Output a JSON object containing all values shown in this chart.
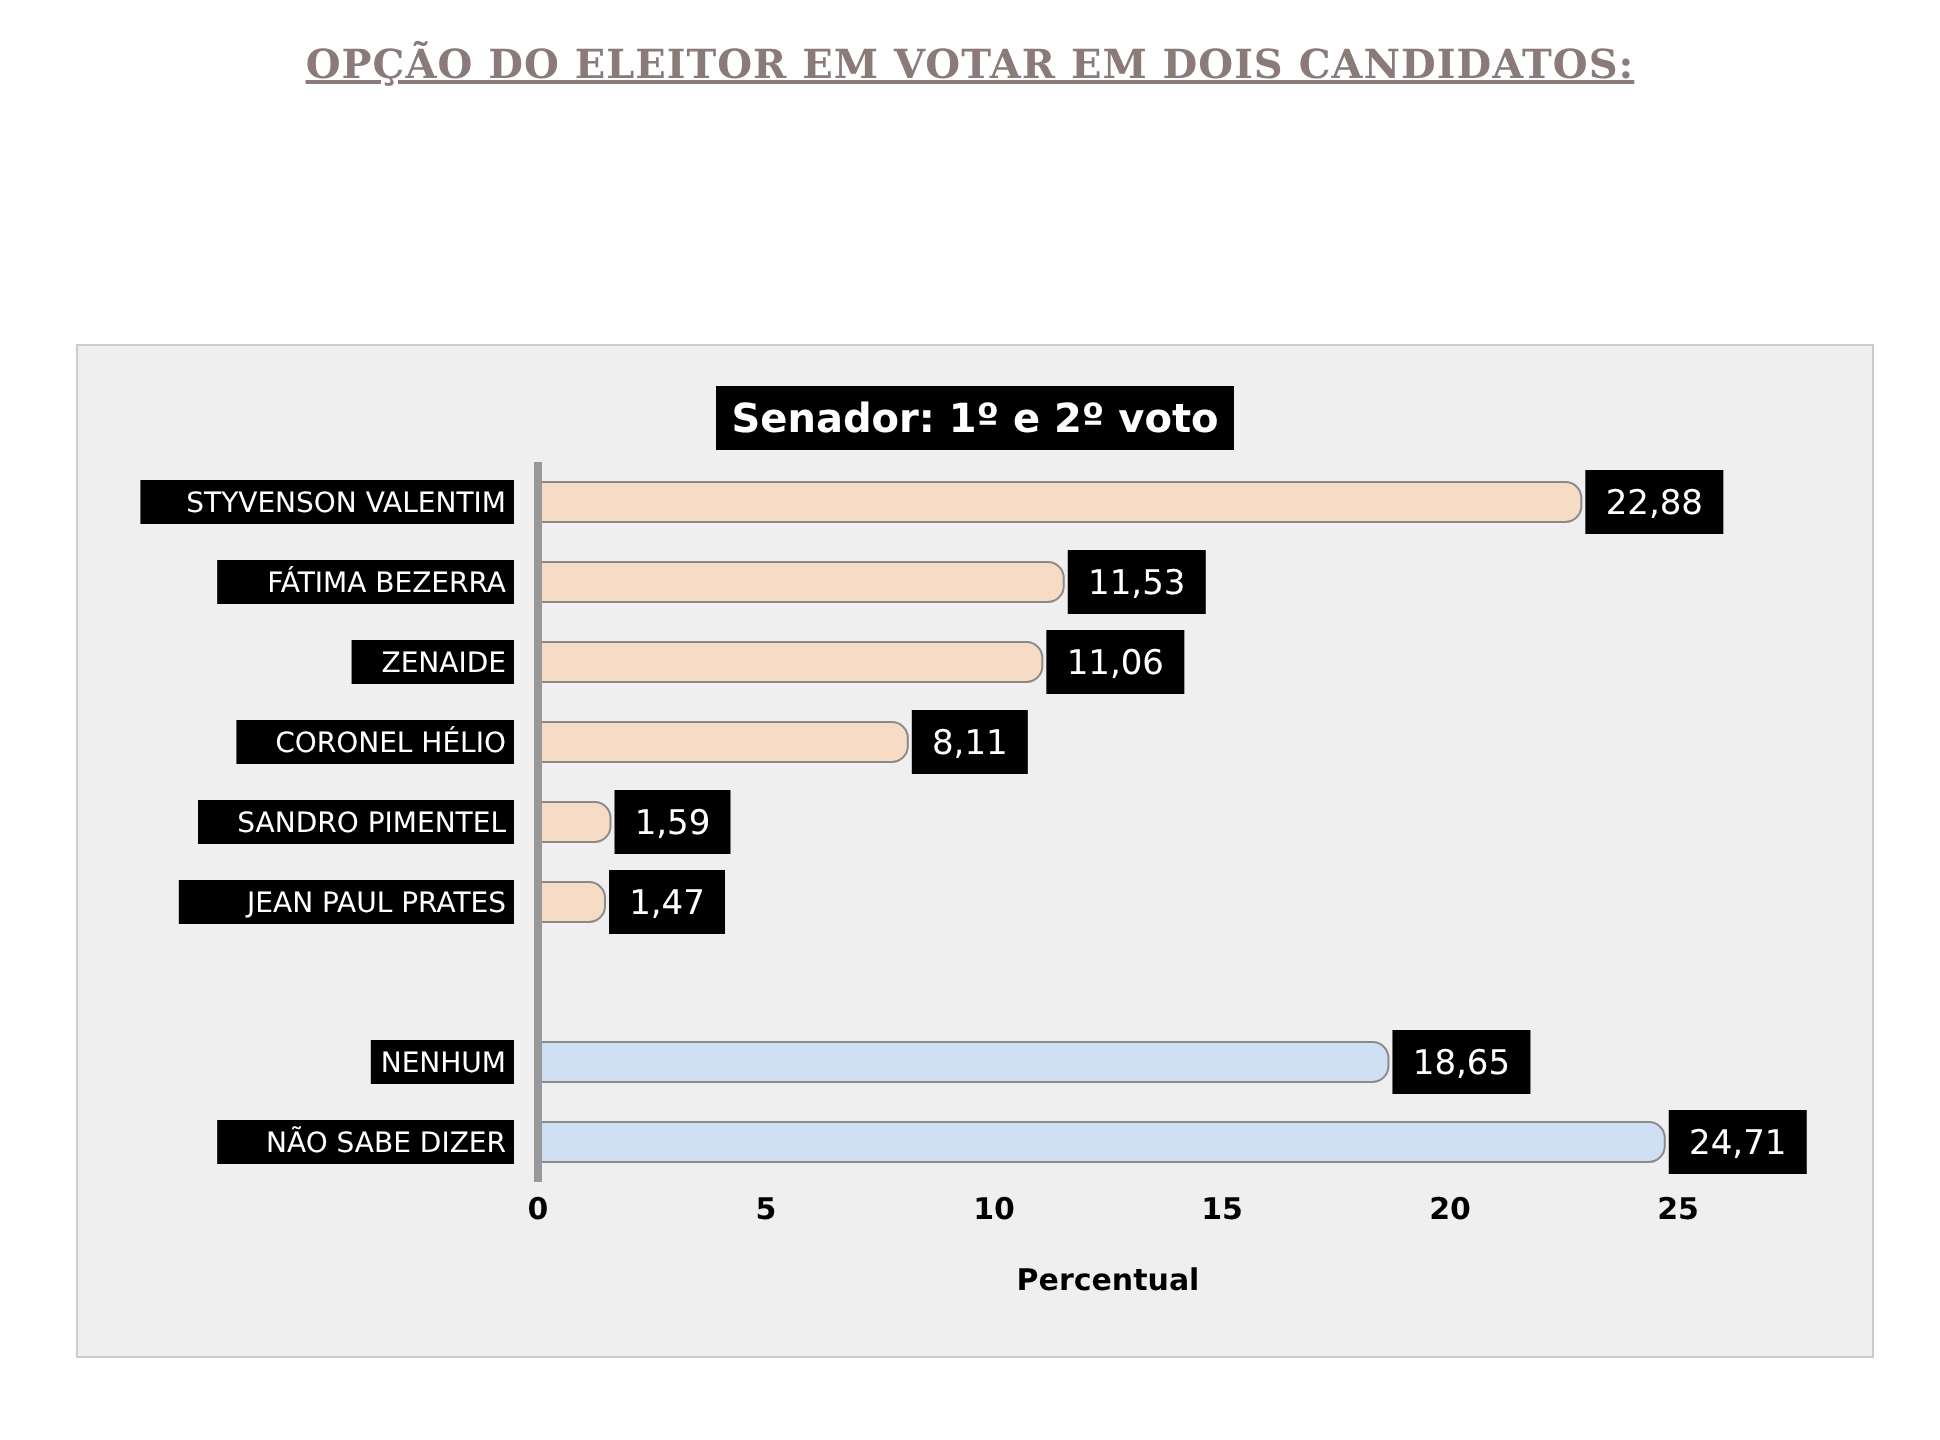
{
  "chart_data": {
    "type": "bar",
    "orientation": "horizontal",
    "title": "OPÇÃO DO ELEITOR EM VOTAR EM DOIS CANDIDATOS:",
    "subtitle": "Senador: 1º e 2º voto",
    "xlabel": "Percentual",
    "categories": [
      "STYVENSON VALENTIM",
      "FÁTIMA BEZERRA",
      "ZENAIDE",
      "CORONEL HÉLIO",
      "SANDRO PIMENTEL",
      "JEAN PAUL PRATES",
      null,
      "NENHUM",
      "NÃO SABE DIZER"
    ],
    "values": [
      22.88,
      11.53,
      11.06,
      8.11,
      1.59,
      1.47,
      null,
      18.65,
      24.71
    ],
    "value_labels": [
      "22,88",
      "11,53",
      "11,06",
      "8,11",
      "1,59",
      "1,47",
      null,
      "18,65",
      "24,71"
    ],
    "colors": [
      "#f6dcc4",
      "#f6dcc4",
      "#f6dcc4",
      "#f6dcc4",
      "#f6dcc4",
      "#f6dcc4",
      "#f6dcc4",
      "#cfe0f5",
      "#cfe0f5"
    ],
    "xlim": [
      0,
      25
    ],
    "xticks": [
      0,
      5,
      10,
      15,
      20,
      25
    ],
    "grid": false,
    "legend": false
  }
}
